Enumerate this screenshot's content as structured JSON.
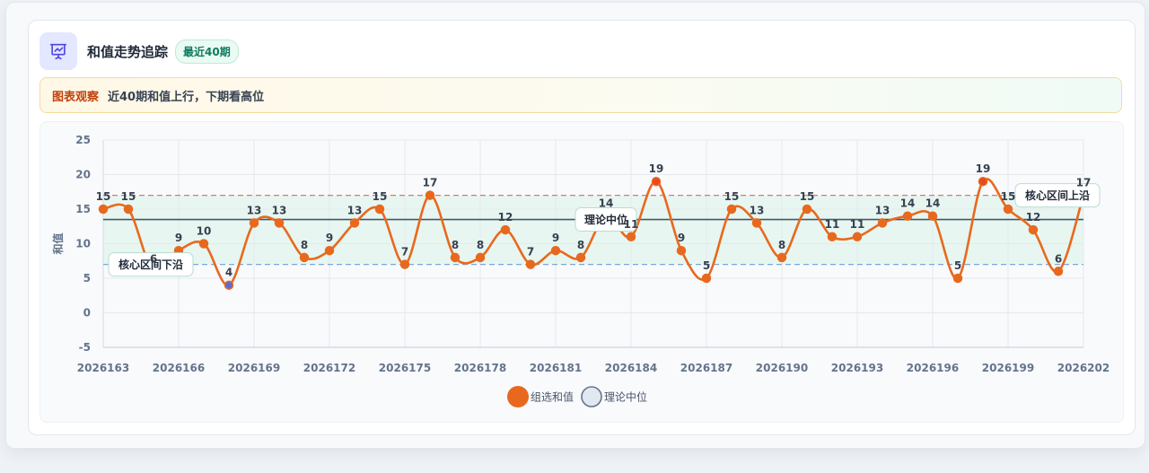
{
  "header": {
    "title": "和值走势追踪",
    "badge": "最近40期",
    "icon": "presentation-chart-icon"
  },
  "observation": {
    "label": "图表观察",
    "text": "近40期和值上行，下期看高位"
  },
  "colors": {
    "series": "#e8691e",
    "upper_band": "#e57373",
    "lower_band": "#7ba7dd",
    "median_line": "#475569",
    "band_fill": "#d9f2e6",
    "low_point": "#5b6bd4",
    "high_point": "#e8491e"
  },
  "chart_data": {
    "type": "line",
    "smooth": true,
    "x": [
      "2026163",
      "2026164",
      "2026165",
      "2026166",
      "2026167",
      "2026168",
      "2026169",
      "2026170",
      "2026171",
      "2026172",
      "2026173",
      "2026174",
      "2026175",
      "2026176",
      "2026177",
      "2026178",
      "2026179",
      "2026180",
      "2026181",
      "2026182",
      "2026183",
      "2026184",
      "2026185",
      "2026186",
      "2026187",
      "2026188",
      "2026189",
      "2026190",
      "2026191",
      "2026192",
      "2026193",
      "2026194",
      "2026195",
      "2026196",
      "2026197",
      "2026198",
      "2026199",
      "2026200",
      "2026201",
      "2026202"
    ],
    "xticks": [
      "2026163",
      "2026166",
      "2026169",
      "2026172",
      "2026175",
      "2026178",
      "2026181",
      "2026184",
      "2026187",
      "2026190",
      "2026193",
      "2026196",
      "2026199",
      "2026202"
    ],
    "series": [
      {
        "name": "组选和值",
        "values": [
          15,
          15,
          6,
          9,
          10,
          4,
          13,
          13,
          8,
          9,
          13,
          15,
          7,
          17,
          8,
          8,
          12,
          7,
          9,
          8,
          14,
          11,
          19,
          9,
          5,
          15,
          13,
          8,
          15,
          11,
          11,
          13,
          14,
          14,
          5,
          19,
          15,
          12,
          6,
          17
        ]
      }
    ],
    "ylabel": "和值",
    "xlabel": "",
    "ylim": [
      -5,
      25
    ],
    "yticks": [
      -5,
      0,
      5,
      10,
      15,
      20,
      25
    ],
    "grid": true,
    "legend_position": "bottom",
    "legend": [
      "组选和值",
      "理论中位"
    ],
    "median": {
      "name": "理论中位",
      "value": 13.5
    },
    "band": {
      "lower": 7,
      "upper": 17
    },
    "annotations": [
      {
        "text": "理论中位",
        "x": "2026183",
        "y": 13.5
      },
      {
        "text": "核心区间下沿",
        "x": "2026164",
        "y": 7
      },
      {
        "text": "核心区间上沿",
        "x": "2026201",
        "y": 17
      }
    ]
  }
}
